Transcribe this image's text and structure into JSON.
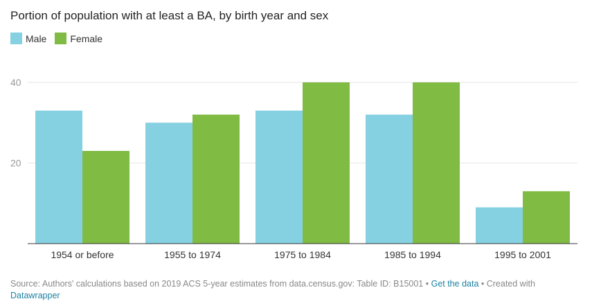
{
  "colors": {
    "male": "#85d1e2",
    "female": "#80bb44",
    "grid": "#e6e6e6",
    "axis": "#333333",
    "link": "#1d81a2"
  },
  "legend": {
    "male": "Male",
    "female": "Female"
  },
  "footer": {
    "source": "Source: Authors' calculations based on 2019 ACS 5-year estimates from data.census.gov: Table ID: B15001",
    "sep1": " • ",
    "get_data": "Get the data",
    "created": " • Created with ",
    "datawrapper": "Datawrapper"
  },
  "chart_data": {
    "type": "bar",
    "title": "Portion of population with at least a BA, by birth year and sex",
    "categories": [
      "1954 or before",
      "1955 to 1974",
      "1975 to 1984",
      "1985 to 1994",
      "1995 to 2001"
    ],
    "series": [
      {
        "name": "Male",
        "values": [
          33,
          30,
          33,
          32,
          9
        ]
      },
      {
        "name": "Female",
        "values": [
          23,
          32,
          40,
          40,
          13
        ]
      }
    ],
    "yticks": [
      20,
      40
    ],
    "ylim": [
      0,
      40
    ],
    "xlabel": "",
    "ylabel": "",
    "grid": true,
    "legend_position": "top-left"
  }
}
